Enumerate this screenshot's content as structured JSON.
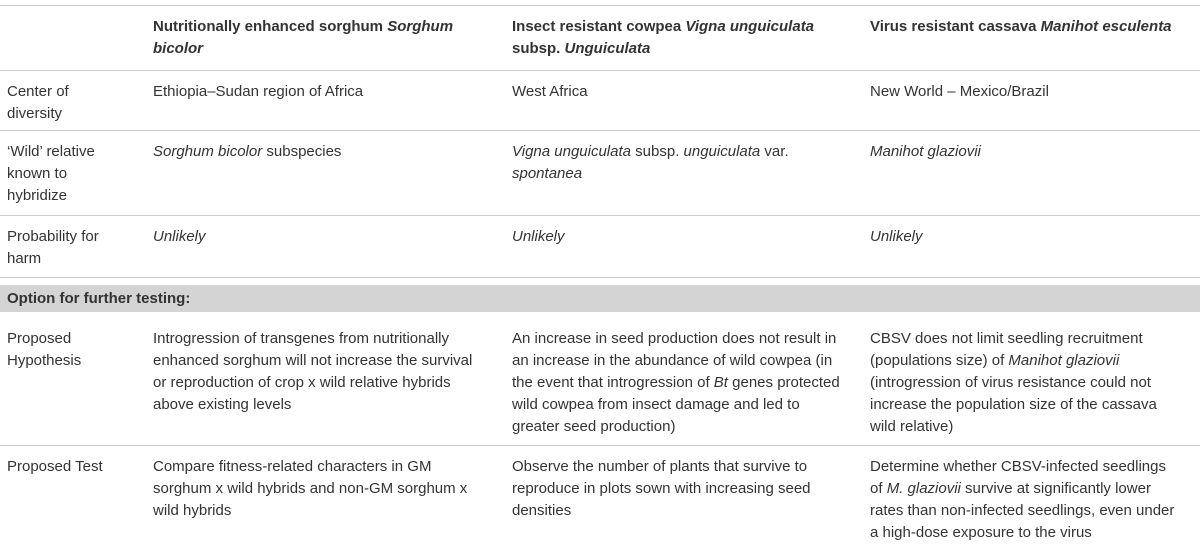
{
  "table": {
    "header": [
      [],
      [
        "Nutritionally enhanced sorghum ",
        {
          "text": "Sorghum bicolor",
          "italic": true
        }
      ],
      [
        "Insect resistant cowpea ",
        {
          "text": "Vigna unguiculata",
          "italic": true
        },
        " subsp. ",
        {
          "text": "Unguiculata",
          "italic": true
        }
      ],
      [
        "Virus resistant cassava ",
        {
          "text": "Manihot esculenta",
          "italic": true
        }
      ]
    ],
    "rows": [
      [
        [
          "Center of diversity"
        ],
        [
          "Ethiopia–Sudan region of Africa"
        ],
        [
          "West Africa"
        ],
        [
          "New World – Mexico/Brazil"
        ]
      ],
      [
        [
          "‘Wild’ relative known to hybridize"
        ],
        [
          {
            "text": "Sorghum bicolor",
            "italic": true
          },
          " subspecies"
        ],
        [
          {
            "text": "Vigna unguiculata",
            "italic": true
          },
          " subsp. ",
          {
            "text": "unguiculata",
            "italic": true
          },
          " var. ",
          {
            "text": "spontanea",
            "italic": true
          }
        ],
        [
          {
            "text": "Manihot glaziovii",
            "italic": true
          }
        ]
      ],
      [
        [
          "Probability for harm"
        ],
        [
          {
            "text": "Unlikely",
            "italic": true
          }
        ],
        [
          {
            "text": "Unlikely",
            "italic": true
          }
        ],
        [
          {
            "text": "Unlikely",
            "italic": true
          }
        ]
      ]
    ],
    "section": "Option for further testing:",
    "rows_after": [
      [
        [
          "Proposed Hypothesis"
        ],
        [
          "Introgression of transgenes from nutritionally enhanced sorghum will not increase the survival or reproduction of crop x wild relative hybrids above existing levels"
        ],
        [
          "An increase in seed production does not result in an increase in the abundance of wild cowpea (in the event that introgression of ",
          {
            "text": "Bt",
            "italic": true
          },
          " genes protected wild cowpea from insect damage and led to greater seed production)"
        ],
        [
          "CBSV does not limit seedling recruitment (populations size) of ",
          {
            "text": "Manihot glaziovii",
            "italic": true
          },
          " (introgression of virus resistance could not increase the population size of the cassava wild relative)"
        ]
      ],
      [
        [
          "Proposed Test"
        ],
        [
          "Compare fitness-related characters in GM sorghum x wild hybrids and non-GM sorghum x wild hybrids"
        ],
        [
          "Observe the number of plants that survive to reproduce in plots sown with increasing seed densities"
        ],
        [
          "Determine whether CBSV-infected seedlings of ",
          {
            "text": "M. glaziovii",
            "italic": true
          },
          " survive at significantly lower rates than non-infected seedlings, even under a high-dose exposure to the virus"
        ]
      ]
    ]
  }
}
